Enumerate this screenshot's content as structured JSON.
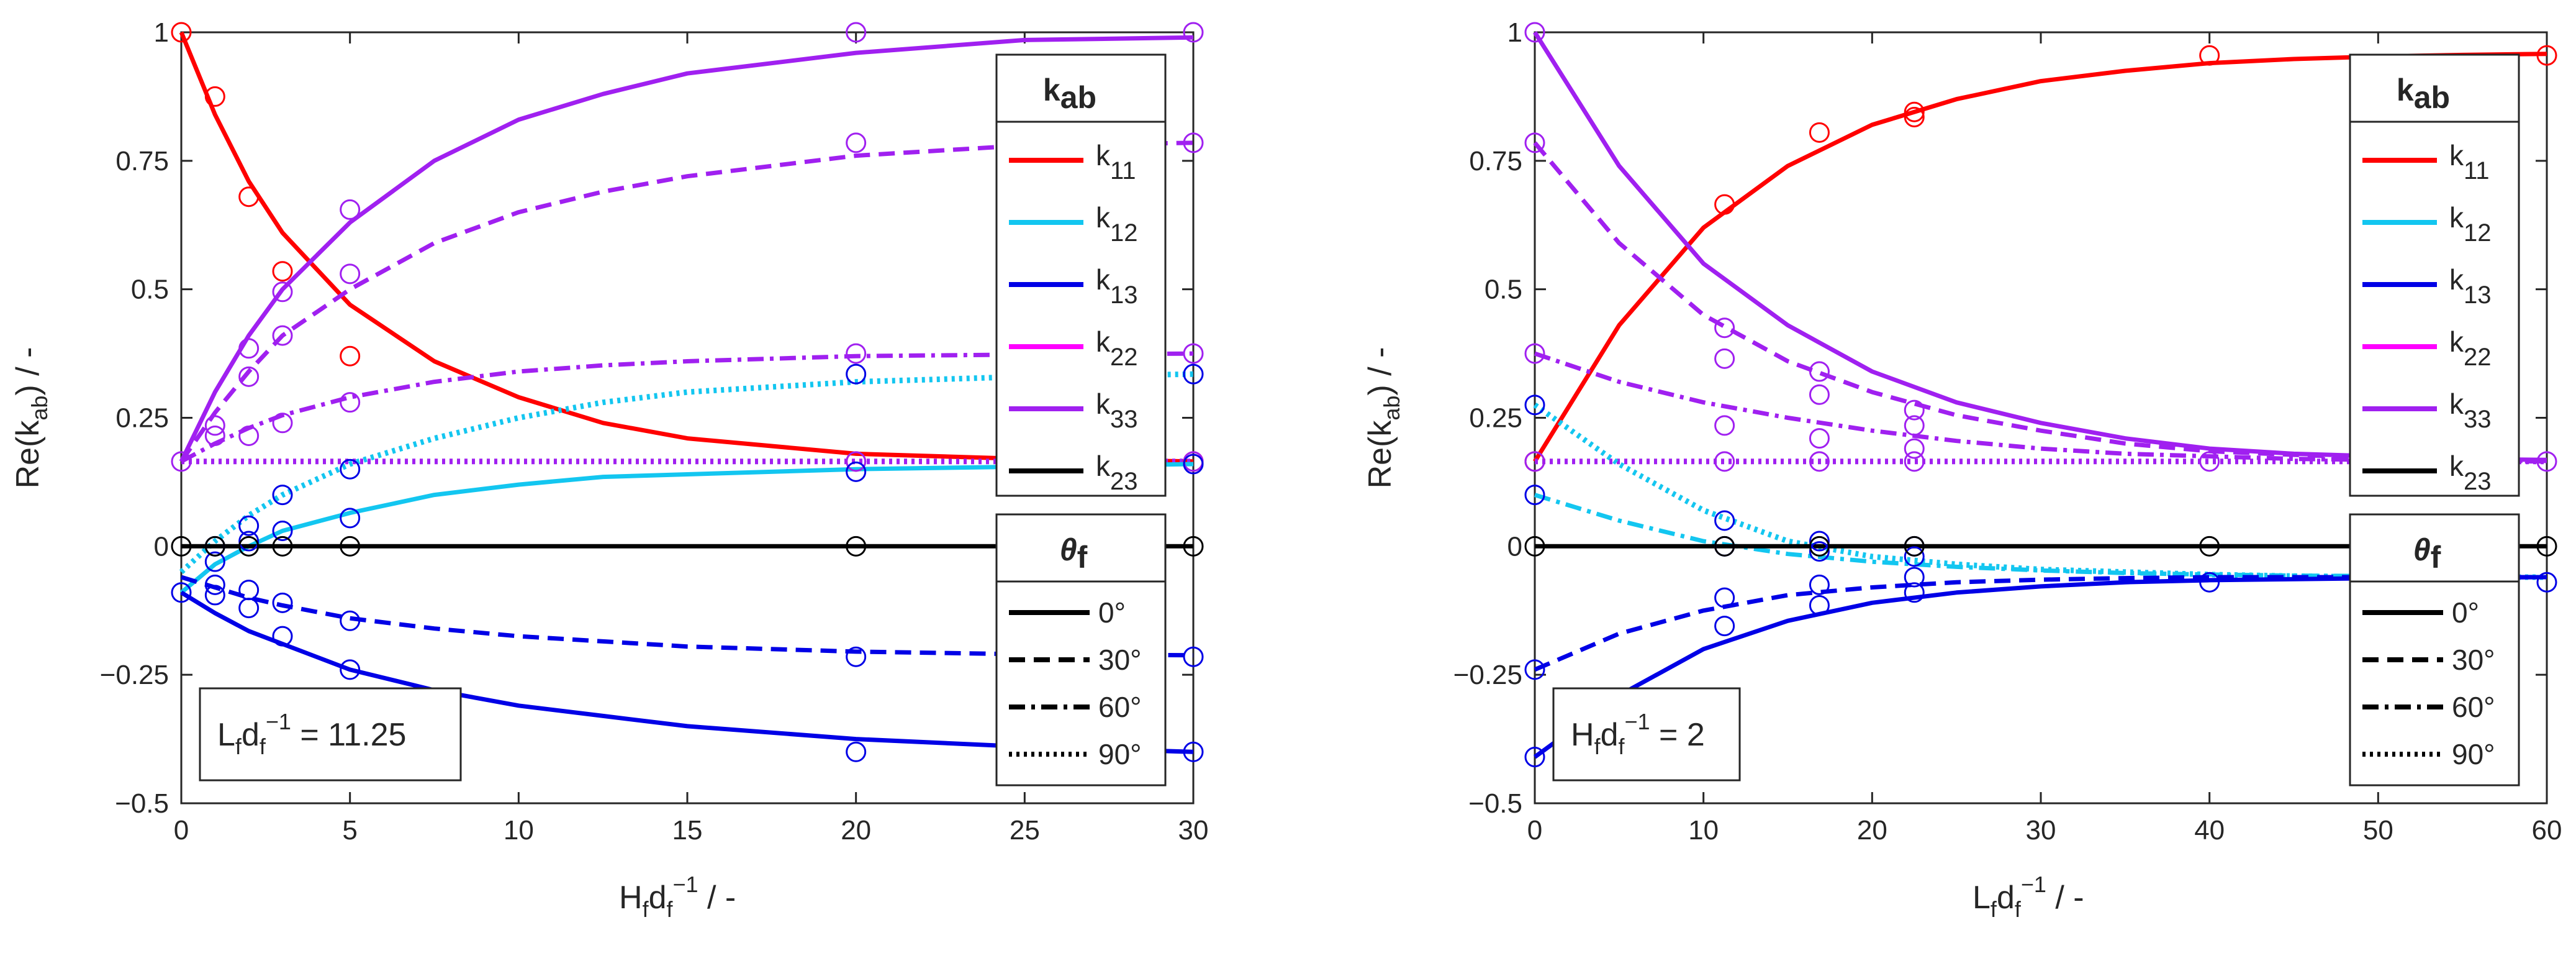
{
  "colors": {
    "k11": "#ff0000",
    "k12": "#13c6f0",
    "k13": "#0000e6",
    "k22": "#ff00ff",
    "k33": "#a020f0",
    "k23": "#000000"
  },
  "chart_data": [
    {
      "type": "line",
      "title": "",
      "xlabel": {
        "base": "H",
        "sub1": "f",
        "mid": "d",
        "sub2": "f",
        "sup": "−1",
        "tail": " / -"
      },
      "ylabel": {
        "base": "Re(k",
        "sub": "ab",
        "tail": ") / -"
      },
      "xlim": [
        0,
        30
      ],
      "ylim": [
        -0.5,
        1
      ],
      "x_ticks": [
        0,
        5,
        10,
        15,
        20,
        25,
        30
      ],
      "y_ticks": [
        -0.5,
        -0.25,
        0,
        0.25,
        0.5,
        0.75,
        1
      ],
      "x_tick_labels": [
        "0",
        "5",
        "10",
        "15",
        "20",
        "25",
        "30"
      ],
      "y_tick_labels": [
        "−0.5",
        "−0.25",
        "0",
        "0.25",
        "0.5",
        "0.75",
        "1"
      ],
      "annotation": {
        "base": "L",
        "sub1": "f",
        "mid": "d",
        "sub2": "f",
        "sup": "−1",
        "tail": " = 11.25"
      },
      "x_curve": [
        0,
        1,
        2,
        3,
        5,
        7.5,
        10,
        12.5,
        15,
        20,
        25,
        30
      ],
      "series": [
        {
          "name": "k11",
          "angle": "0°",
          "color_key": "k11",
          "dash": "solid",
          "values": [
            1.0,
            0.84,
            0.71,
            0.61,
            0.47,
            0.36,
            0.29,
            0.24,
            0.21,
            0.18,
            0.17,
            0.165
          ]
        },
        {
          "name": "k22/k33",
          "angle": "0°",
          "color_key": "k33",
          "dash": "solid",
          "values": [
            0.165,
            0.3,
            0.41,
            0.5,
            0.63,
            0.75,
            0.83,
            0.88,
            0.92,
            0.96,
            0.985,
            0.99
          ]
        },
        {
          "name": "k22/k33",
          "angle": "30°",
          "color_key": "k33",
          "dash": "dashed",
          "values": [
            0.165,
            0.26,
            0.34,
            0.41,
            0.5,
            0.59,
            0.65,
            0.69,
            0.72,
            0.76,
            0.78,
            0.785
          ]
        },
        {
          "name": "k22/k33",
          "angle": "60°",
          "color_key": "k33",
          "dash": "dashdot",
          "values": [
            0.165,
            0.2,
            0.23,
            0.255,
            0.29,
            0.32,
            0.34,
            0.352,
            0.36,
            0.37,
            0.373,
            0.375
          ]
        },
        {
          "name": "k22/k33",
          "angle": "90°",
          "color_key": "k33",
          "dash": "dotted",
          "values": [
            0.165,
            0.165,
            0.165,
            0.165,
            0.165,
            0.165,
            0.165,
            0.165,
            0.165,
            0.165,
            0.165,
            0.165
          ]
        },
        {
          "name": "k12",
          "angle": "0°",
          "color_key": "k12",
          "dash": "solid",
          "values": [
            -0.09,
            -0.035,
            0.0,
            0.03,
            0.065,
            0.1,
            0.12,
            0.135,
            0.14,
            0.15,
            0.155,
            0.16
          ]
        },
        {
          "name": "k12",
          "angle": "90°",
          "color_key": "k12",
          "dash": "dotted",
          "values": [
            -0.05,
            0.01,
            0.06,
            0.1,
            0.16,
            0.21,
            0.25,
            0.28,
            0.3,
            0.32,
            0.33,
            0.335
          ]
        },
        {
          "name": "k13",
          "angle": "0°",
          "color_key": "k13",
          "dash": "solid",
          "values": [
            -0.09,
            -0.13,
            -0.165,
            -0.19,
            -0.24,
            -0.28,
            -0.31,
            -0.33,
            -0.35,
            -0.375,
            -0.39,
            -0.4
          ]
        },
        {
          "name": "k13",
          "angle": "30°",
          "color_key": "k13",
          "dash": "dashed",
          "values": [
            -0.06,
            -0.08,
            -0.1,
            -0.115,
            -0.14,
            -0.16,
            -0.175,
            -0.185,
            -0.195,
            -0.205,
            -0.21,
            -0.212
          ]
        },
        {
          "name": "k23",
          "angle": "0°",
          "color_key": "k23",
          "dash": "solid",
          "values": [
            0,
            0,
            0,
            0,
            0,
            0,
            0,
            0,
            0,
            0,
            0,
            0
          ]
        }
      ],
      "markers": [
        {
          "color_key": "k11",
          "points": [
            [
              0,
              1.0
            ],
            [
              1,
              0.875
            ],
            [
              2,
              0.68
            ],
            [
              3,
              0.535
            ],
            [
              5,
              0.37
            ],
            [
              20,
              0.165
            ],
            [
              30,
              0.165
            ]
          ]
        },
        {
          "color_key": "k33",
          "points": [
            [
              0,
              0.165
            ],
            [
              1,
              0.235
            ],
            [
              1,
              0.215
            ],
            [
              2,
              0.385
            ],
            [
              2,
              0.33
            ],
            [
              2,
              0.215
            ],
            [
              3,
              0.495
            ],
            [
              3,
              0.41
            ],
            [
              3,
              0.24
            ],
            [
              5,
              0.655
            ],
            [
              5,
              0.53
            ],
            [
              5,
              0.28
            ],
            [
              20,
              1.0
            ],
            [
              20,
              0.785
            ],
            [
              20,
              0.375
            ],
            [
              20,
              0.165
            ],
            [
              30,
              1.0
            ],
            [
              30,
              0.785
            ],
            [
              30,
              0.375
            ],
            [
              30,
              0.165
            ]
          ]
        },
        {
          "color_key": "k13",
          "points": [
            [
              0,
              -0.09
            ],
            [
              1,
              -0.095
            ],
            [
              1,
              -0.075
            ],
            [
              1,
              -0.03
            ],
            [
              1,
              0.0
            ],
            [
              2,
              -0.085
            ],
            [
              2,
              -0.12
            ],
            [
              2,
              0.01
            ],
            [
              2,
              0.04
            ],
            [
              3,
              -0.11
            ],
            [
              3,
              -0.175
            ],
            [
              3,
              0.03
            ],
            [
              3,
              0.1
            ],
            [
              5,
              -0.145
            ],
            [
              5,
              -0.24
            ],
            [
              5,
              0.055
            ],
            [
              5,
              0.15
            ],
            [
              20,
              -0.215
            ],
            [
              20,
              -0.4
            ],
            [
              20,
              0.145
            ],
            [
              20,
              0.335
            ],
            [
              30,
              -0.215
            ],
            [
              30,
              -0.4
            ],
            [
              30,
              0.16
            ],
            [
              30,
              0.335
            ]
          ]
        },
        {
          "color_key": "k23",
          "points": [
            [
              0,
              0
            ],
            [
              1,
              0
            ],
            [
              2,
              0
            ],
            [
              3,
              0
            ],
            [
              5,
              0
            ],
            [
              20,
              0
            ],
            [
              30,
              0
            ]
          ]
        }
      ]
    },
    {
      "type": "line",
      "title": "",
      "xlabel": {
        "base": "L",
        "sub1": "f",
        "mid": "d",
        "sub2": "f",
        "sup": "−1",
        "tail": " / -"
      },
      "ylabel": {
        "base": "Re(k",
        "sub": "ab",
        "tail": ") / -"
      },
      "xlim": [
        0,
        60
      ],
      "ylim": [
        -0.5,
        1
      ],
      "x_ticks": [
        0,
        10,
        20,
        30,
        40,
        50,
        60
      ],
      "y_ticks": [
        -0.5,
        -0.25,
        0,
        0.25,
        0.5,
        0.75,
        1
      ],
      "x_tick_labels": [
        "0",
        "10",
        "20",
        "30",
        "40",
        "50",
        "60"
      ],
      "y_tick_labels": [
        "−0.5",
        "−0.25",
        "0",
        "0.25",
        "0.5",
        "0.75",
        "1"
      ],
      "annotation": {
        "base": "H",
        "sub1": "f",
        "mid": "d",
        "sub2": "f",
        "sup": "−1",
        "tail": " = 2"
      },
      "x_curve": [
        0,
        5,
        10,
        15,
        20,
        25,
        30,
        35,
        40,
        45,
        50,
        55,
        60
      ],
      "series": [
        {
          "name": "k11",
          "angle": "0°",
          "color_key": "k11",
          "dash": "solid",
          "values": [
            0.165,
            0.43,
            0.62,
            0.74,
            0.82,
            0.87,
            0.905,
            0.925,
            0.94,
            0.948,
            0.953,
            0.956,
            0.958
          ]
        },
        {
          "name": "k22/k33",
          "angle": "0°",
          "color_key": "k33",
          "dash": "solid",
          "values": [
            1.0,
            0.74,
            0.55,
            0.43,
            0.34,
            0.28,
            0.24,
            0.21,
            0.19,
            0.18,
            0.175,
            0.17,
            0.168
          ]
        },
        {
          "name": "k22/k33",
          "angle": "30°",
          "color_key": "k33",
          "dash": "dashed",
          "values": [
            0.785,
            0.59,
            0.45,
            0.36,
            0.3,
            0.255,
            0.225,
            0.2,
            0.185,
            0.178,
            0.172,
            0.168,
            0.166
          ]
        },
        {
          "name": "k22/k33",
          "angle": "60°",
          "color_key": "k33",
          "dash": "dashdot",
          "values": [
            0.375,
            0.32,
            0.28,
            0.25,
            0.225,
            0.205,
            0.19,
            0.18,
            0.175,
            0.17,
            0.168,
            0.166,
            0.165
          ]
        },
        {
          "name": "k22/k33",
          "angle": "90°",
          "color_key": "k33",
          "dash": "dotted",
          "values": [
            0.165,
            0.165,
            0.165,
            0.165,
            0.165,
            0.165,
            0.165,
            0.165,
            0.165,
            0.165,
            0.165,
            0.165,
            0.165
          ]
        },
        {
          "name": "k12",
          "angle": "90°",
          "color_key": "k12",
          "dash": "dotted",
          "values": [
            0.275,
            0.16,
            0.07,
            0.01,
            -0.02,
            -0.035,
            -0.045,
            -0.05,
            -0.055,
            -0.058,
            -0.06,
            -0.06,
            -0.06
          ]
        },
        {
          "name": "k12",
          "angle": "60°",
          "color_key": "k12",
          "dash": "dashdot",
          "values": [
            0.1,
            0.05,
            0.01,
            -0.015,
            -0.03,
            -0.04,
            -0.047,
            -0.052,
            -0.055,
            -0.057,
            -0.058,
            -0.059,
            -0.06
          ]
        },
        {
          "name": "k13",
          "angle": "30°",
          "color_key": "k13",
          "dash": "dashed",
          "values": [
            -0.24,
            -0.17,
            -0.125,
            -0.095,
            -0.08,
            -0.07,
            -0.065,
            -0.062,
            -0.06,
            -0.06,
            -0.06,
            -0.06,
            -0.06
          ]
        },
        {
          "name": "k13",
          "angle": "0°",
          "color_key": "k13",
          "dash": "solid",
          "values": [
            -0.41,
            -0.29,
            -0.2,
            -0.145,
            -0.11,
            -0.09,
            -0.078,
            -0.07,
            -0.066,
            -0.064,
            -0.062,
            -0.061,
            -0.06
          ]
        },
        {
          "name": "k23",
          "angle": "0°",
          "color_key": "k23",
          "dash": "solid",
          "values": [
            0,
            0,
            0,
            0,
            0,
            0,
            0,
            0,
            0,
            0,
            0,
            0,
            0
          ]
        }
      ],
      "markers": [
        {
          "color_key": "k11",
          "points": [
            [
              0,
              0.165
            ],
            [
              11.25,
              0.665
            ],
            [
              16.875,
              0.805
            ],
            [
              22.5,
              0.835
            ],
            [
              22.5,
              0.845
            ],
            [
              40,
              0.955
            ],
            [
              60,
              0.955
            ]
          ]
        },
        {
          "color_key": "k33",
          "points": [
            [
              0,
              1.0
            ],
            [
              0,
              0.785
            ],
            [
              0,
              0.375
            ],
            [
              0,
              0.165
            ],
            [
              11.25,
              0.425
            ],
            [
              11.25,
              0.365
            ],
            [
              11.25,
              0.235
            ],
            [
              11.25,
              0.165
            ],
            [
              16.875,
              0.34
            ],
            [
              16.875,
              0.295
            ],
            [
              16.875,
              0.21
            ],
            [
              16.875,
              0.165
            ],
            [
              22.5,
              0.265
            ],
            [
              22.5,
              0.235
            ],
            [
              22.5,
              0.19
            ],
            [
              22.5,
              0.165
            ],
            [
              40,
              0.165
            ],
            [
              60,
              0.165
            ]
          ]
        },
        {
          "color_key": "k13",
          "points": [
            [
              0,
              0.275
            ],
            [
              0,
              0.1
            ],
            [
              0,
              -0.24
            ],
            [
              0,
              -0.41
            ],
            [
              11.25,
              0.05
            ],
            [
              11.25,
              0.0
            ],
            [
              11.25,
              -0.1
            ],
            [
              11.25,
              -0.155
            ],
            [
              16.875,
              0.01
            ],
            [
              16.875,
              -0.01
            ],
            [
              16.875,
              -0.075
            ],
            [
              16.875,
              -0.115
            ],
            [
              22.5,
              0.0
            ],
            [
              22.5,
              -0.02
            ],
            [
              22.5,
              -0.06
            ],
            [
              22.5,
              -0.09
            ],
            [
              40,
              -0.07
            ],
            [
              60,
              -0.07
            ]
          ]
        },
        {
          "color_key": "k23",
          "points": [
            [
              0,
              0
            ],
            [
              11.25,
              0
            ],
            [
              16.875,
              0
            ],
            [
              22.5,
              0
            ],
            [
              40,
              0
            ],
            [
              60,
              0
            ]
          ]
        }
      ]
    }
  ],
  "legend_k": {
    "title_base": "k",
    "title_sub": "ab",
    "entries": [
      {
        "base": "k",
        "sub": "11",
        "color_key": "k11"
      },
      {
        "base": "k",
        "sub": "12",
        "color_key": "k12"
      },
      {
        "base": "k",
        "sub": "13",
        "color_key": "k13"
      },
      {
        "base": "k",
        "sub": "22",
        "color_key": "k22"
      },
      {
        "base": "k",
        "sub": "33",
        "color_key": "k33"
      },
      {
        "base": "k",
        "sub": "23",
        "color_key": "k23"
      }
    ]
  },
  "legend_theta": {
    "title_base": "θ",
    "title_sub": "f",
    "entries": [
      {
        "label": "0°",
        "dash": "solid"
      },
      {
        "label": "30°",
        "dash": "dashed"
      },
      {
        "label": "60°",
        "dash": "dashdot"
      },
      {
        "label": "90°",
        "dash": "dotted"
      }
    ]
  }
}
